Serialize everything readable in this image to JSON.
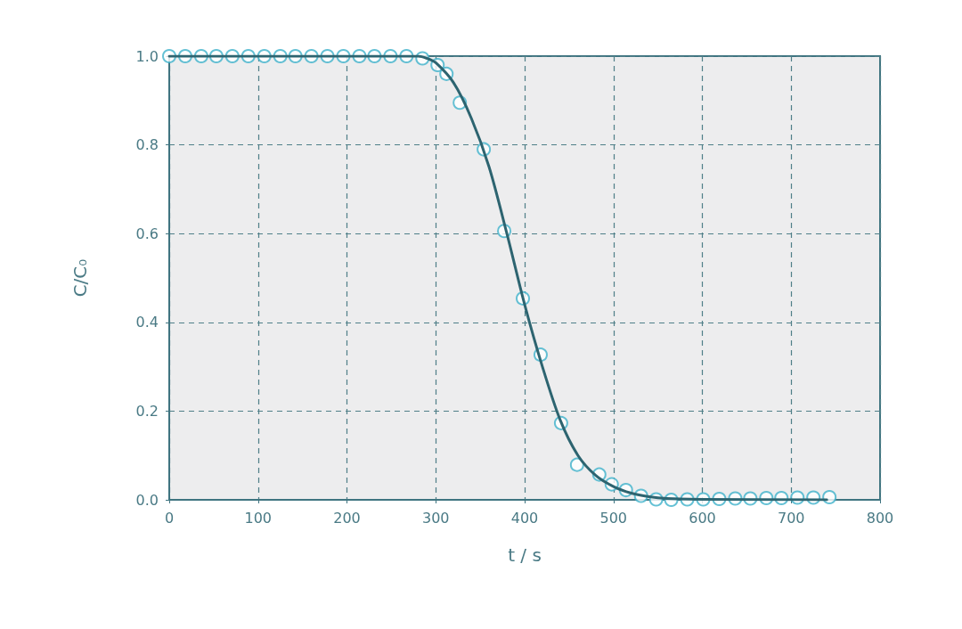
{
  "chart_data": {
    "type": "scatter",
    "xlabel": "t / s",
    "ylabel": "C/C₀",
    "xlim": [
      0,
      800
    ],
    "xticks": [
      0,
      100,
      200,
      300,
      400,
      500,
      600,
      700,
      800
    ],
    "ylim": [
      0,
      1
    ],
    "yticks": [
      {
        "value": 0,
        "label": "0.0"
      },
      0.2,
      0.4,
      0.6,
      0.8,
      {
        "value": 1,
        "label": "1.0"
      }
    ],
    "grid": true,
    "series": [
      {
        "marker": "circle",
        "color": "#3fb2cb",
        "x": [
          0,
          18,
          36,
          53,
          71,
          89,
          107,
          125,
          142,
          160,
          178,
          196,
          214,
          231,
          249,
          267,
          285,
          302,
          312,
          327,
          354,
          377,
          398,
          418,
          441,
          459,
          484,
          498,
          514,
          531,
          548,
          565,
          583,
          601,
          619,
          637,
          654,
          672,
          689,
          707,
          725,
          743
        ],
        "values": [
          1,
          1,
          1,
          1,
          1,
          1,
          1,
          1,
          1,
          1,
          1,
          1,
          1,
          1,
          1,
          1,
          0.995,
          0.98,
          0.96,
          0.895,
          0.79,
          0.606,
          0.454,
          0.327,
          0.173,
          0.079,
          0.057,
          0.035,
          0.022,
          0.009,
          0.001,
          0,
          0.001,
          0.001,
          0.002,
          0.003,
          0.003,
          0.004,
          0.004,
          0.005,
          0.005,
          0.006
        ]
      },
      {
        "type": "line",
        "marker": "none",
        "line_style": "solid",
        "color": "#2d6470",
        "x": [
          0,
          280,
          290,
          300,
          320,
          340,
          360,
          380,
          400,
          420,
          440,
          460,
          480,
          500,
          520,
          540,
          560,
          600,
          740
        ],
        "values": [
          1,
          1,
          0.995,
          0.985,
          0.94,
          0.86,
          0.75,
          0.6,
          0.44,
          0.3,
          0.18,
          0.1,
          0.055,
          0.03,
          0.015,
          0.007,
          0.003,
          0.001,
          0
        ]
      }
    ]
  }
}
